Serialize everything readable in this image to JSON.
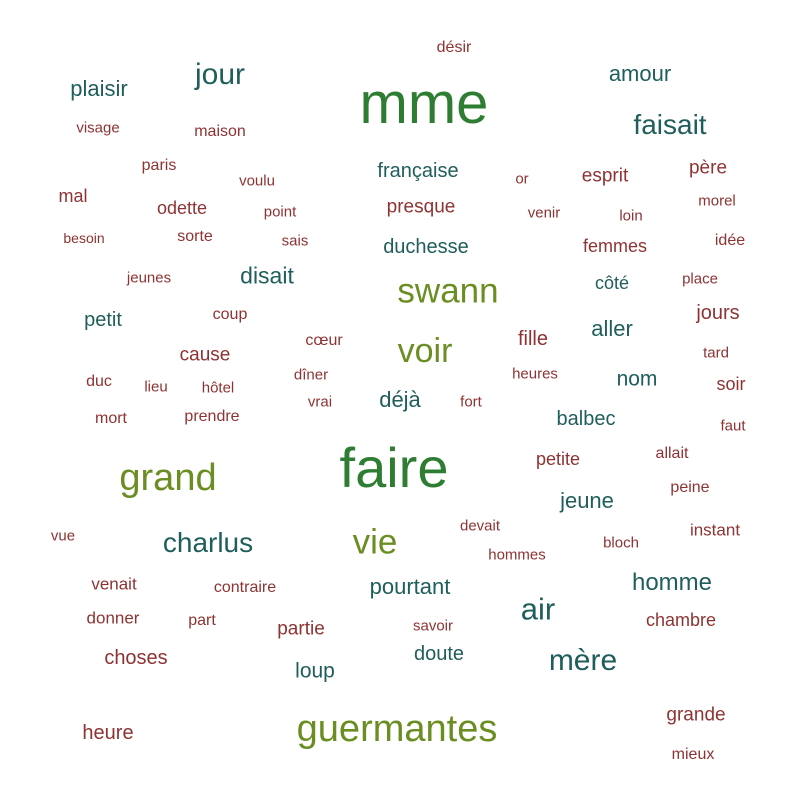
{
  "colors": {
    "dark_green": "#2e7d32",
    "olive_green": "#6b8e23",
    "teal": "#1f5e5b",
    "dark_red": "#8e3333"
  },
  "words": [
    "désir",
    "mme",
    "plaisir",
    "jour",
    "amour",
    "faisait",
    "visage",
    "maison",
    "paris",
    "voulu",
    "française",
    "or",
    "esprit",
    "père",
    "mal",
    "odette",
    "point",
    "presque",
    "venir",
    "loin",
    "morel",
    "besoin",
    "sorte",
    "sais",
    "duchesse",
    "femmes",
    "idée",
    "jeunes",
    "disait",
    "swann",
    "côté",
    "place",
    "petit",
    "coup",
    "jours",
    "cause",
    "cœur",
    "voir",
    "fille",
    "aller",
    "tard",
    "duc",
    "lieu",
    "hôtel",
    "dîner",
    "heures",
    "nom",
    "soir",
    "mort",
    "prendre",
    "vrai",
    "déjà",
    "fort",
    "balbec",
    "faut",
    "faire",
    "grand",
    "petite",
    "allait",
    "peine",
    "jeune",
    "devait",
    "vue",
    "charlus",
    "vie",
    "hommes",
    "bloch",
    "instant",
    "venait",
    "contraire",
    "pourtant",
    "homme",
    "air",
    "donner",
    "part",
    "partie",
    "savoir",
    "chambre",
    "choses",
    "doute",
    "mère",
    "loup",
    "heure",
    "guermantes",
    "grande",
    "mieux"
  ]
}
